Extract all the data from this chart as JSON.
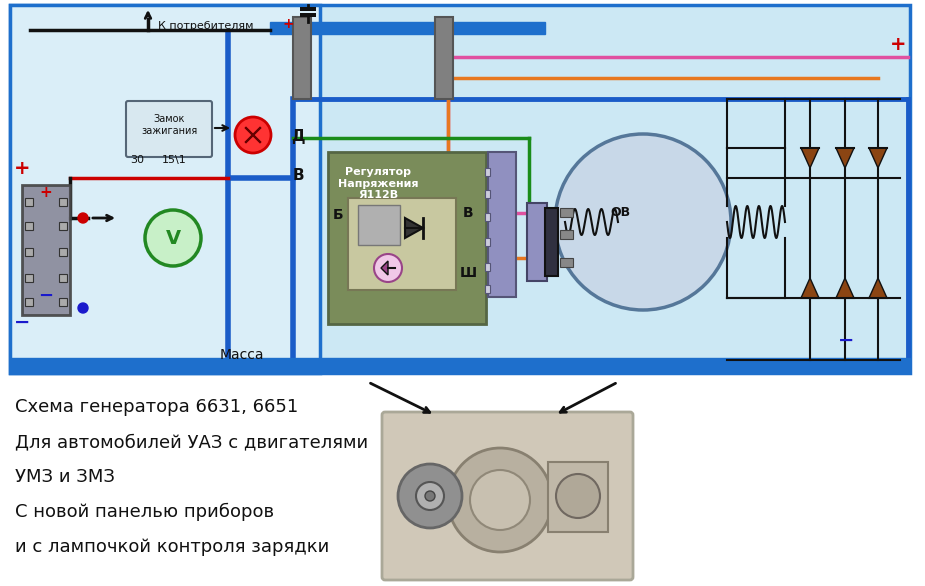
{
  "bg_color": "#ffffff",
  "diagram_bg": "#cce8f4",
  "border_color": "#1e6fcc",
  "title_lines": [
    "Схема генератора 6631, 6651",
    "Для автомобилей УАЗ с двигателями",
    "УМЗ и ЗМЗ",
    "С новой панелью приборов",
    "и с лампочкой контроля зарядки"
  ],
  "label_к_потребителям": "К потребителям",
  "label_масса": "Масса",
  "label_замок": "Замок\nзажигания",
  "label_регулятор": "Регулятор\nНапряжения\nЯ112В",
  "label_д": "Д",
  "label_в": "В",
  "label_б": "Б",
  "label_в2": "В",
  "label_ш": "Ш",
  "label_ов": "ОВ",
  "label_30": "30",
  "label_15_1": "15\\1",
  "label_plus_left": "+",
  "label_minus_left": "−",
  "label_plus_right": "+",
  "label_minus_right": "−",
  "colors": {
    "blue_wire": "#1a5cc8",
    "green_wire": "#1a8c1a",
    "pink_wire": "#e050a0",
    "orange_wire": "#e87820",
    "red_wire": "#cc0000",
    "black_wire": "#111111",
    "gray_wire": "#888888",
    "brown_diode": "#8B4513",
    "voltage_reg_bg": "#7a8c5a",
    "connector_bg": "#9090c0",
    "dark_connector": "#303040"
  }
}
